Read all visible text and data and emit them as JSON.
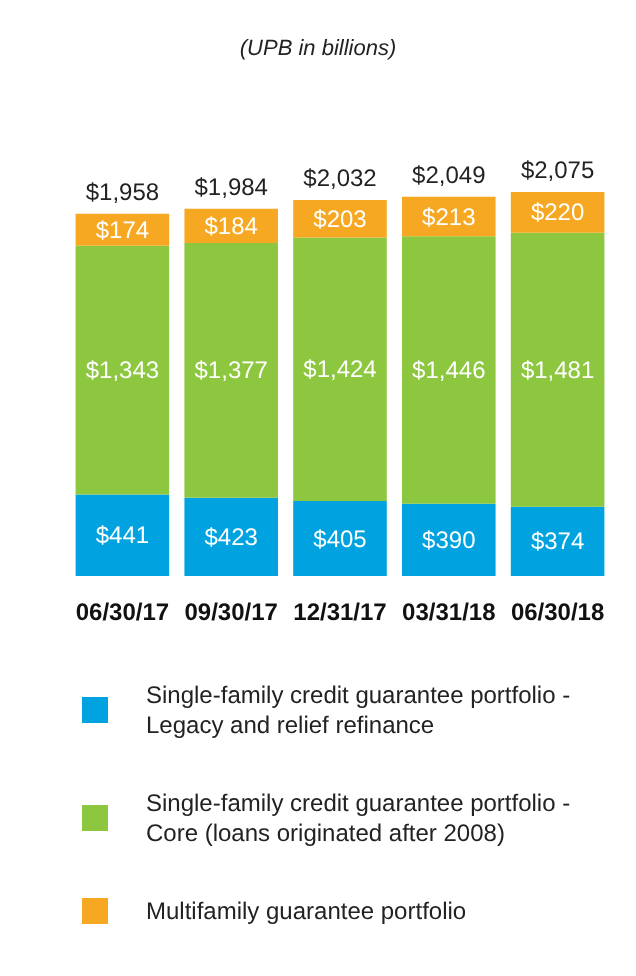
{
  "chart_data": {
    "type": "bar",
    "title": "(UPB in billions)",
    "stacked": true,
    "legend": "bottom",
    "categories": [
      "06/30/17",
      "09/30/17",
      "12/31/17",
      "03/31/18",
      "06/30/18"
    ],
    "series": [
      {
        "name": "Single-family credit guarantee portfolio - Legacy and relief refinance",
        "color": "#00a3e0",
        "values": [
          441,
          423,
          405,
          390,
          374
        ],
        "value_labels": [
          "$441",
          "$423",
          "$405",
          "$390",
          "$374"
        ]
      },
      {
        "name": "Single-family credit guarantee portfolio - Core (loans originated after 2008)",
        "color": "#8dc63f",
        "values": [
          1343,
          1377,
          1424,
          1446,
          1481
        ],
        "value_labels": [
          "$1,343",
          "$1,377",
          "$1,424",
          "$1,446",
          "$1,481"
        ]
      },
      {
        "name": "Multifamily guarantee portfolio",
        "color": "#f7a823",
        "values": [
          174,
          184,
          203,
          213,
          220
        ],
        "value_labels": [
          "$174",
          "$184",
          "$203",
          "$213",
          "$220"
        ]
      }
    ],
    "totals": [
      "$1,958",
      "$1,984",
      "$2,032",
      "$2,049",
      "$2,075"
    ]
  }
}
